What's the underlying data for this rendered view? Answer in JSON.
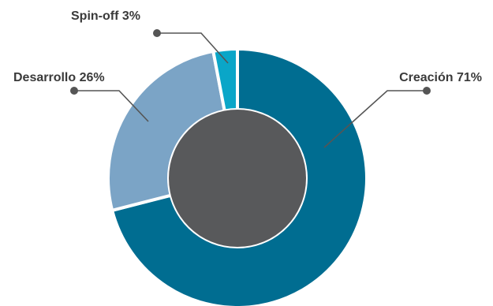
{
  "chart_data": {
    "type": "pie",
    "donut": true,
    "title": "",
    "slices": [
      {
        "label": "Creación",
        "value": 71,
        "display": "Creación 71%",
        "color": "#006d91"
      },
      {
        "label": "Desarrollo",
        "value": 26,
        "display": "Desarrollo 26%",
        "color": "#7ba4c6"
      },
      {
        "label": "Spin-off",
        "value": 3,
        "display": "Spin-off 3%",
        "color": "#0aa6c8"
      }
    ],
    "center_color": "#58595b",
    "leader_color": "#555555",
    "legend": "none"
  }
}
